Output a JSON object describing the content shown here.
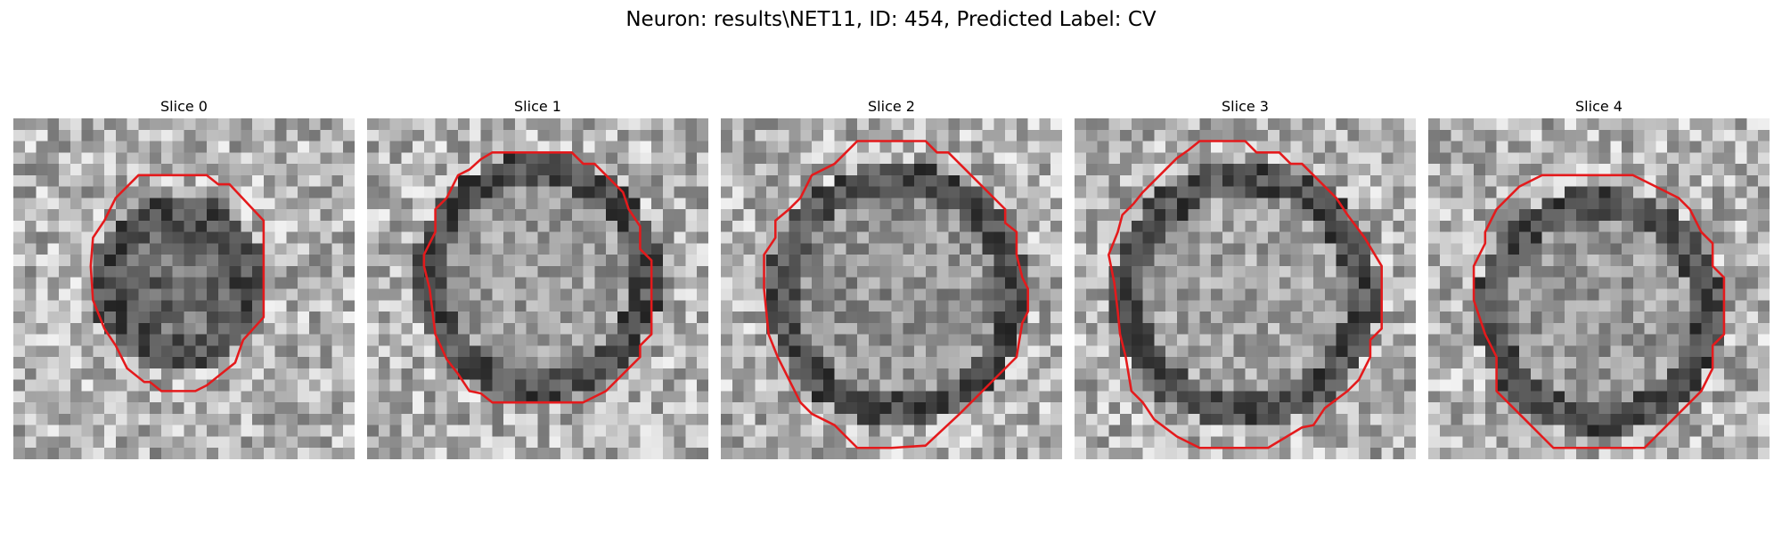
{
  "figure": {
    "title": "Neuron: results\\NET11, ID: 454, Predicted Label: CV"
  },
  "colors": {
    "background": "#ffffff",
    "contour": "#e41a1c",
    "colormap": "grayscale"
  },
  "slices": [
    {
      "title": "Slice 0",
      "icon": "grayscale-microscopy-patch",
      "contour_shape": "octagon",
      "seed": 11
    },
    {
      "title": "Slice 1",
      "icon": "grayscale-microscopy-patch",
      "contour_shape": "octagon",
      "seed": 23
    },
    {
      "title": "Slice 2",
      "icon": "grayscale-microscopy-patch",
      "contour_shape": "octagon",
      "seed": 37
    },
    {
      "title": "Slice 3",
      "icon": "grayscale-microscopy-patch",
      "contour_shape": "octagon",
      "seed": 53
    },
    {
      "title": "Slice 4",
      "icon": "grayscale-microscopy-patch",
      "contour_shape": "octagon",
      "seed": 71
    }
  ]
}
